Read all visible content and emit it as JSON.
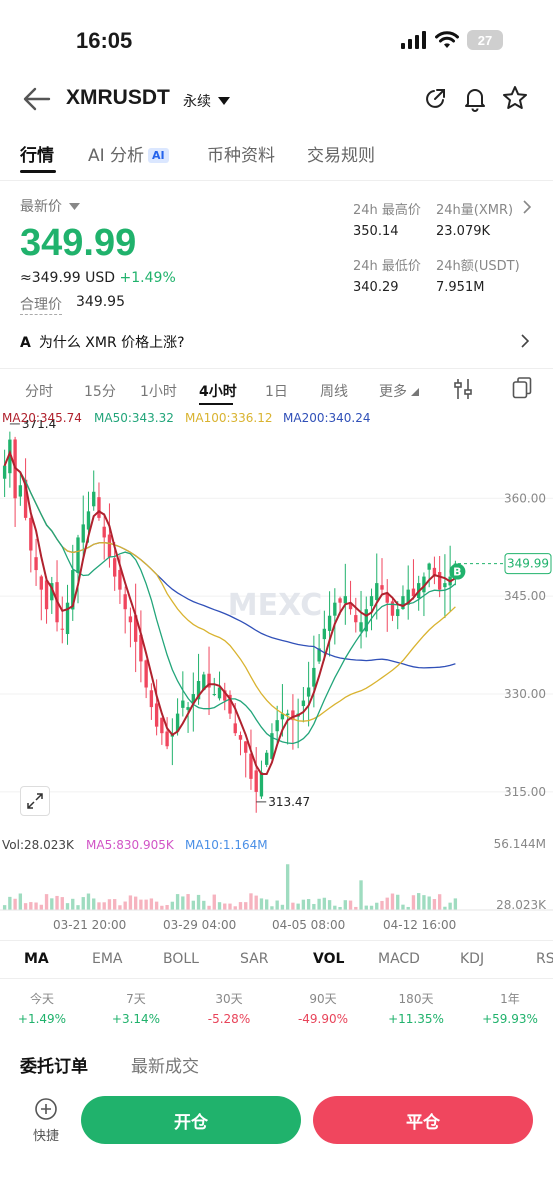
{
  "status": {
    "time": "16:05",
    "battery": "27"
  },
  "header": {
    "symbol": "XMRUSDT",
    "contract": "永续"
  },
  "tabs": [
    {
      "label": "行情"
    },
    {
      "label": "AI 分析",
      "badge": "AI"
    },
    {
      "label": "币种资料"
    },
    {
      "label": "交易规则"
    }
  ],
  "price": {
    "latest_label": "最新价",
    "last": "349.99",
    "usd_equiv": "≈349.99 USD",
    "change_pct": "+1.49%",
    "fair_label": "合理价",
    "fair_value": "349.95"
  },
  "stats": {
    "high_label": "24h 最高价",
    "high_value": "350.14",
    "vol_label": "24h量(XMR)",
    "vol_value": "23.079K",
    "low_label": "24h 最低价",
    "low_value": "340.29",
    "amount_label": "24h额(USDT)",
    "amount_value": "7.951M"
  },
  "why_text": "为什么 XMR 价格上涨?",
  "timeframes": [
    "分时",
    "15分",
    "1小时",
    "4小时",
    "1日",
    "周线",
    "更多"
  ],
  "active_timeframe": "4小时",
  "ma_legend": {
    "ma20": "MA20:345.74",
    "ma50": "MA50:343.32",
    "ma100": "MA100:336.12",
    "ma200": "MA200:340.24"
  },
  "chart_data": {
    "type": "candlestick",
    "price_axis": [
      "360.00",
      "345.00",
      "330.00",
      "315.00"
    ],
    "ylim": [
      311,
      372
    ],
    "high_marker": "371.4",
    "low_marker": "313.47",
    "last_marker": "349.99",
    "buy_marker": "B",
    "watermark": "MEXC",
    "x_labels": [
      "03-21 20:00",
      "03-29 04:00",
      "04-05 08:00",
      "04-12 16:00"
    ],
    "closes": [
      365,
      369,
      360,
      362,
      357,
      352,
      349,
      346,
      343,
      347,
      341,
      340,
      344,
      349,
      354,
      356,
      358,
      361,
      357,
      354,
      351,
      348,
      346,
      343,
      341,
      338,
      335,
      331,
      328,
      325,
      324,
      322,
      324,
      327,
      329,
      328,
      330,
      332,
      333,
      331,
      330,
      331,
      329,
      327,
      324,
      323,
      321,
      317,
      315,
      318,
      321,
      324,
      326,
      327,
      327,
      326,
      327,
      329,
      331,
      334,
      337,
      340,
      342,
      344,
      344,
      345,
      343,
      341,
      341,
      343,
      345,
      347,
      346,
      344,
      342,
      343,
      345,
      346,
      345,
      347,
      348,
      350,
      348,
      346,
      347,
      348,
      350
    ],
    "volume_axis": [
      "56.144M",
      "28.023K"
    ],
    "volume_legend": {
      "vol": "Vol:28.023K",
      "ma5": "MA5:830.905K",
      "ma10": "MA10:1.164M"
    },
    "colors": {
      "up": "#20b26c",
      "down": "#f0465e",
      "ma20": "#b0222e",
      "ma50": "#22a57a",
      "ma100": "#d9b330",
      "ma200": "#3050b8"
    }
  },
  "indicators": [
    "MA",
    "EMA",
    "BOLL",
    "SAR",
    "VOL",
    "MACD",
    "KDJ",
    "RS"
  ],
  "active_indicators": [
    "MA",
    "VOL"
  ],
  "performance": [
    {
      "label": "今天",
      "value": "+1.49%",
      "dir": "up"
    },
    {
      "label": "7天",
      "value": "+3.14%",
      "dir": "up"
    },
    {
      "label": "30天",
      "value": "-5.28%",
      "dir": "down"
    },
    {
      "label": "90天",
      "value": "-49.90%",
      "dir": "down"
    },
    {
      "label": "180天",
      "value": "+11.35%",
      "dir": "up"
    },
    {
      "label": "1年",
      "value": "+59.93%",
      "dir": "up"
    }
  ],
  "orderbook_tabs": [
    "委托订单",
    "最新成交"
  ],
  "bottom": {
    "quick_label": "快捷",
    "open_label": "开仓",
    "close_label": "平仓"
  }
}
